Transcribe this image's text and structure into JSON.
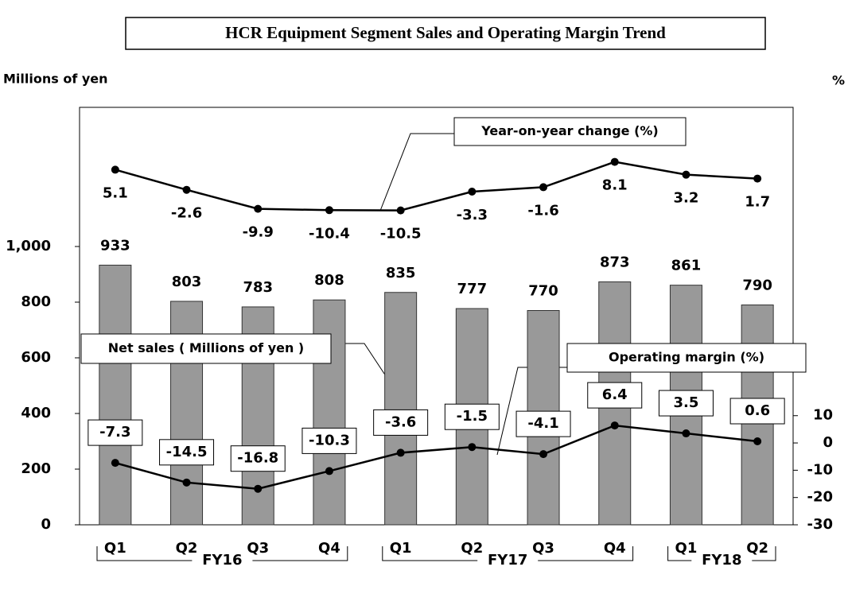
{
  "chart_data": {
    "type": "bar",
    "title": "HCR Equipment Segment Sales and Operating Margin Trend",
    "y_label": "Millions of yen",
    "y2_label": "%",
    "categories": [
      "Q1",
      "Q2",
      "Q3",
      "Q4",
      "Q1",
      "Q2",
      "Q3",
      "Q4",
      "Q1",
      "Q2"
    ],
    "category_groups": [
      "FY16",
      "FY16",
      "FY16",
      "FY16",
      "FY17",
      "FY17",
      "FY17",
      "FY17",
      "FY18",
      "FY18"
    ],
    "series": [
      {
        "name": "Net sales ( Millions of yen )",
        "type": "bar",
        "color": "#999999",
        "values": [
          933,
          803,
          783,
          808,
          835,
          777,
          770,
          873,
          861,
          790
        ]
      },
      {
        "name": "Operating margin (%)",
        "type": "line",
        "axis": "y2",
        "color": "#000000",
        "values": [
          -7.3,
          -14.5,
          -16.8,
          -10.3,
          -3.6,
          -1.5,
          -4.1,
          6.4,
          3.5,
          0.6
        ]
      },
      {
        "name": "Year-on-year change (%)",
        "type": "line",
        "axis": "y3",
        "color": "#000000",
        "values": [
          5.1,
          -2.6,
          -9.9,
          -10.4,
          -10.5,
          -3.3,
          -1.6,
          8.1,
          3.2,
          1.7
        ]
      }
    ],
    "ylim": [
      0,
      1500
    ],
    "yticks": [
      0,
      200,
      400,
      600,
      800,
      {
        "value": 1000,
        "label": "1,000"
      }
    ],
    "y2lim": [
      -30,
      123
    ],
    "y2ticks": [
      -30,
      -20,
      -10,
      0,
      10
    ],
    "y3lim": [
      -131,
      29
    ]
  }
}
